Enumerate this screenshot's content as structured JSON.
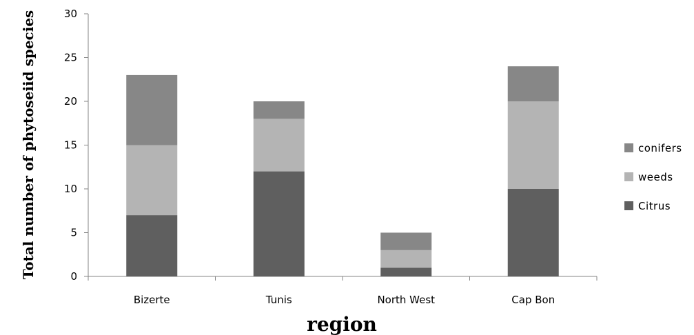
{
  "chart_data": {
    "type": "bar",
    "stacked": true,
    "categories": [
      "Bizerte",
      "Tunis",
      "North West",
      "Cap Bon"
    ],
    "series": [
      {
        "name": "Citrus",
        "values": [
          7,
          12,
          1,
          10
        ],
        "color": "#5f5f5f"
      },
      {
        "name": "weeds",
        "values": [
          8,
          6,
          2,
          10
        ],
        "color": "#b4b4b4"
      },
      {
        "name": "conifers",
        "values": [
          8,
          2,
          2,
          4
        ],
        "color": "#878787"
      }
    ],
    "title": "",
    "xlabel": "region",
    "ylabel": "Total number of phytoseiid species",
    "ylim": [
      0,
      30
    ],
    "yticks": [
      0,
      5,
      10,
      15,
      20,
      25,
      30
    ],
    "grid": false,
    "legend_position": "right",
    "legend_order": [
      "conifers",
      "weeds",
      "Citrus"
    ]
  }
}
